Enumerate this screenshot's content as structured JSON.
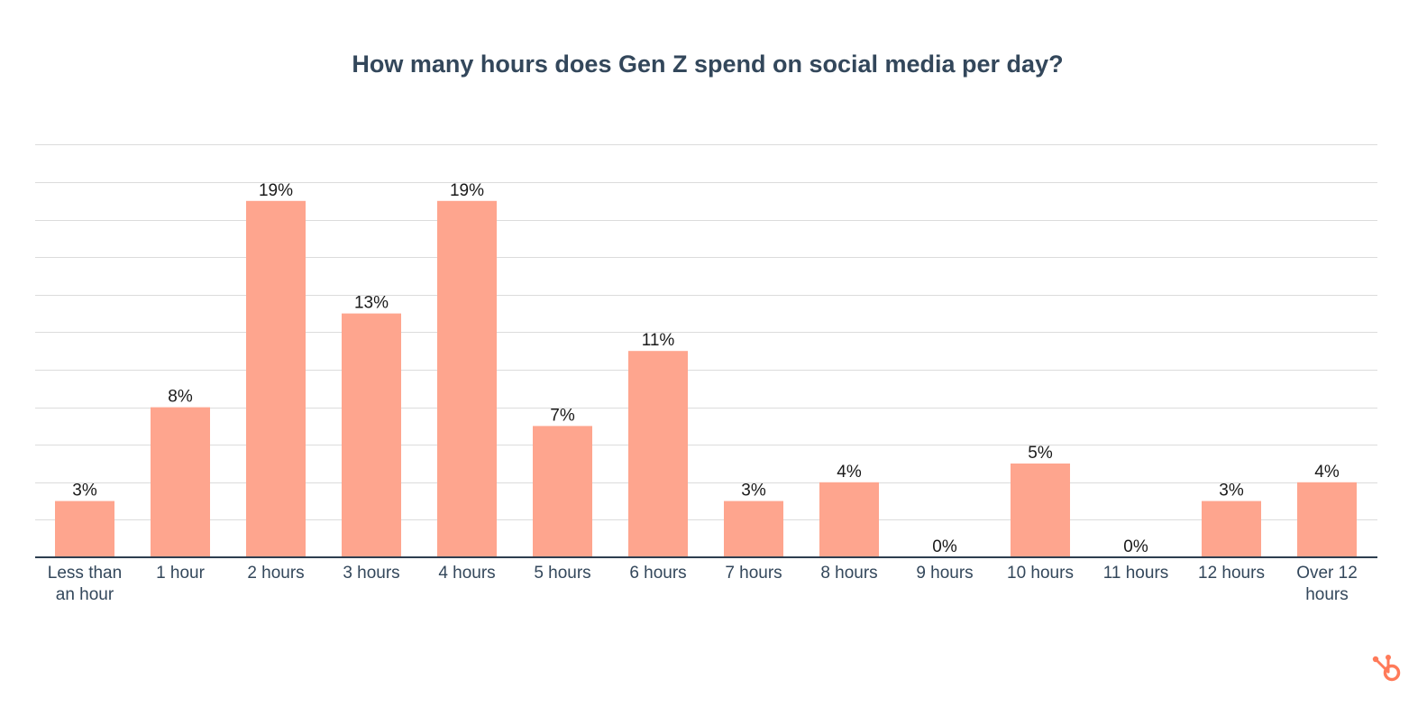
{
  "chart_data": {
    "type": "bar",
    "title": "How many hours does Gen Z spend on social media per day?",
    "categories": [
      "Less than an hour",
      "1 hour",
      "2 hours",
      "3 hours",
      "4 hours",
      "5 hours",
      "6 hours",
      "7 hours",
      "8 hours",
      "9 hours",
      "10 hours",
      "11 hours",
      "12 hours",
      "Over 12 hours"
    ],
    "category_lines": [
      [
        "Less than",
        "an hour"
      ],
      [
        "1 hour"
      ],
      [
        "2 hours"
      ],
      [
        "3 hours"
      ],
      [
        "4 hours"
      ],
      [
        "5 hours"
      ],
      [
        "6 hours"
      ],
      [
        "7 hours"
      ],
      [
        "8 hours"
      ],
      [
        "9 hours"
      ],
      [
        "10 hours"
      ],
      [
        "11 hours"
      ],
      [
        "12 hours"
      ],
      [
        "Over 12",
        "hours"
      ]
    ],
    "values": [
      3,
      8,
      19,
      13,
      19,
      7,
      11,
      3,
      4,
      0,
      5,
      0,
      3,
      4
    ],
    "value_labels": [
      "3%",
      "8%",
      "19%",
      "13%",
      "19%",
      "7%",
      "11%",
      "3%",
      "4%",
      "0%",
      "5%",
      "0%",
      "3%",
      "4%"
    ],
    "unit": "%",
    "xlabel": "",
    "ylabel": "",
    "ylim": [
      0,
      22
    ],
    "grid_step": 2,
    "grid": true,
    "y_tick_labels_shown": false,
    "bar_color": "#fea58e"
  },
  "brand": {
    "logo_icon": "hubspot-sprocket-icon",
    "logo_color": "#ff7a59"
  }
}
